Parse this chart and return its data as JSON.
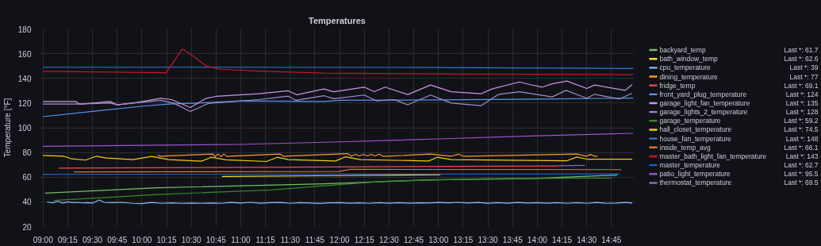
{
  "chart_data": {
    "type": "line",
    "title": "Temperatures",
    "ylabel": "Temperature [°F]",
    "xlim": [
      8.97,
      14.98
    ],
    "ylim": [
      20,
      180
    ],
    "yticks": [
      20,
      40,
      60,
      80,
      100,
      120,
      140,
      160,
      180
    ],
    "xticks": [
      {
        "value": 9,
        "label": "09:00"
      },
      {
        "value": 9.25,
        "label": "09:15"
      },
      {
        "value": 9.5,
        "label": "09:30"
      },
      {
        "value": 9.75,
        "label": "09:45"
      },
      {
        "value": 10,
        "label": "10:00"
      },
      {
        "value": 10.25,
        "label": "10:15"
      },
      {
        "value": 10.5,
        "label": "10:30"
      },
      {
        "value": 10.75,
        "label": "10:45"
      },
      {
        "value": 11,
        "label": "11:00"
      },
      {
        "value": 11.25,
        "label": "11:15"
      },
      {
        "value": 11.5,
        "label": "11:30"
      },
      {
        "value": 11.75,
        "label": "11:45"
      },
      {
        "value": 12,
        "label": "12:00"
      },
      {
        "value": 12.25,
        "label": "12:15"
      },
      {
        "value": 12.5,
        "label": "12:30"
      },
      {
        "value": 12.75,
        "label": "12:45"
      },
      {
        "value": 13,
        "label": "13:00"
      },
      {
        "value": 13.25,
        "label": "13:15"
      },
      {
        "value": 13.5,
        "label": "13:30"
      },
      {
        "value": 13.75,
        "label": "13:45"
      },
      {
        "value": 14,
        "label": "14:00"
      },
      {
        "value": 14.25,
        "label": "14:15"
      },
      {
        "value": 14.5,
        "label": "14:30"
      },
      {
        "value": 14.75,
        "label": "14:45"
      }
    ],
    "grid": true,
    "legend": "right",
    "annotations": [
      "Last *: 61.7",
      "Last *: 62.6",
      "Last *: 39",
      "Last *: 77",
      "Last *: 69.1",
      "Last *: 124",
      "Last *: 135",
      "Last *: 128",
      "Last *: 59.2",
      "Last *: 74.5",
      "Last *: 148",
      "Last *: 66.1",
      "Last *: 143",
      "Last *: 62.7",
      "Last *: 95.5",
      "Last *: 69.5"
    ],
    "series": [
      {
        "name": "backyard_temp",
        "color": "#73BF69",
        "x": [
          9.02,
          10.16,
          11.84,
          12.9,
          13.93,
          14.81
        ],
        "values": [
          47.1,
          51.4,
          54.6,
          57.8,
          58.8,
          61.7
        ]
      },
      {
        "name": "bath_window_temp",
        "color": "#FADE2A",
        "x": [
          10.81,
          12.0,
          13.02
        ],
        "values": [
          60.5,
          61.3,
          62.0
        ]
      },
      {
        "name": "cpu_temperature",
        "color": "#8AB8FF",
        "x": [
          9.04,
          9.1,
          9.15,
          9.2,
          9.25,
          9.3,
          9.35,
          9.4,
          9.45,
          9.5,
          9.57,
          9.62,
          9.7,
          9.8,
          9.9,
          10.0,
          10.1,
          10.2,
          10.3,
          10.4,
          10.5,
          10.6,
          10.7,
          10.8,
          10.9,
          11.0,
          11.1,
          11.2,
          11.3,
          11.4,
          11.5,
          11.6,
          11.7,
          11.8,
          11.9,
          12.0,
          12.1,
          12.2,
          12.3,
          12.4,
          12.5,
          12.6,
          12.7,
          12.8,
          12.9,
          13.0,
          13.1,
          13.2,
          13.3,
          13.4,
          13.5,
          13.6,
          13.7,
          13.8,
          13.9,
          14.0,
          14.1,
          14.2,
          14.3,
          14.4,
          14.5,
          14.6,
          14.7,
          14.8,
          14.9,
          14.96
        ],
        "values": [
          39.9,
          39.2,
          40.4,
          39.0,
          40.0,
          39.3,
          39.6,
          39.1,
          39.4,
          39.0,
          41.5,
          39.6,
          39.3,
          39.6,
          38.8,
          38.6,
          39.5,
          38.8,
          39.2,
          38.8,
          39.1,
          38.8,
          39.0,
          38.8,
          39.5,
          39.0,
          39.6,
          38.9,
          39.3,
          39.5,
          38.8,
          39.4,
          39.0,
          38.7,
          39.2,
          39.3,
          38.9,
          39.2,
          38.8,
          39.3,
          38.9,
          39.3,
          38.9,
          39.2,
          39.0,
          39.5,
          39.2,
          39.6,
          39.0,
          39.5,
          38.9,
          39.4,
          38.9,
          39.5,
          39.0,
          39.3,
          38.9,
          39.4,
          38.8,
          39.4,
          38.8,
          39.5,
          38.8,
          39.0,
          39.5,
          39.0
        ]
      },
      {
        "name": "dining_temperature",
        "color": "#FF9830",
        "x": [
          10.16,
          10.18,
          10.72,
          10.74,
          10.77,
          10.8,
          10.83,
          10.86,
          10.88,
          11.4,
          11.43,
          12.08,
          12.12,
          12.16,
          12.2,
          12.24,
          12.28,
          12.32,
          12.36,
          12.4,
          12.44,
          12.48,
          12.92,
          13.13,
          13.2,
          13.25,
          13.3,
          14.4,
          14.5,
          14.54,
          14.58,
          14.61
        ],
        "values": [
          78.0,
          77.0,
          78.7,
          76.6,
          78.7,
          76.6,
          78.7,
          76.8,
          77.0,
          78.7,
          77.0,
          79.1,
          77.0,
          78.5,
          77.2,
          78.5,
          77.2,
          78.5,
          77.2,
          78.6,
          77.0,
          77.0,
          78.7,
          77.0,
          78.6,
          77.0,
          77.0,
          78.7,
          77.0,
          78.4,
          77.0,
          77.0
        ]
      },
      {
        "name": "fridge_temp",
        "color": "#F2495C",
        "x": [
          9.16,
          12.0,
          14.21
        ],
        "values": [
          67.3,
          68.3,
          69.1
        ]
      },
      {
        "name": "front_yard_plug_temperature",
        "color": "#5794F2",
        "x": [
          9.0,
          9.5,
          10.01,
          10.27,
          10.57,
          11.0,
          11.84,
          12.0,
          13.0,
          14.0,
          14.97
        ],
        "values": [
          109.0,
          113.3,
          117.5,
          119.2,
          120.0,
          121.8,
          121.3,
          122.2,
          122.6,
          123.2,
          124.0
        ]
      },
      {
        "name": "garage_light_fan_temperature",
        "color": "#CA95E5",
        "x": [
          9.0,
          9.33,
          9.37,
          9.68,
          9.75,
          9.96,
          10.19,
          10.3,
          10.49,
          10.65,
          10.75,
          11.18,
          11.48,
          11.57,
          11.84,
          11.94,
          12.25,
          12.35,
          12.46,
          12.69,
          12.92,
          13.13,
          13.43,
          13.54,
          13.82,
          13.92,
          14.05,
          14.15,
          14.3,
          14.5,
          14.58,
          14.89,
          14.96
        ],
        "values": [
          121.3,
          121.3,
          119.0,
          121.3,
          118.6,
          120.7,
          123.9,
          122.8,
          116.4,
          123.9,
          125.4,
          127.5,
          129.9,
          126.7,
          131.4,
          129.2,
          132.9,
          129.2,
          132.9,
          126.9,
          134.6,
          129.2,
          127.5,
          131.4,
          137.1,
          135.0,
          132.9,
          135.6,
          137.8,
          131.8,
          134.6,
          130.3,
          135.0
        ]
      },
      {
        "name": "garage_lights_2_temperature",
        "color": "#A28CCF",
        "x": [
          9.0,
          9.33,
          9.68,
          9.75,
          10.19,
          10.32,
          10.49,
          10.67,
          11.18,
          11.48,
          11.56,
          11.84,
          11.94,
          12.25,
          12.37,
          12.55,
          12.69,
          12.92,
          13.13,
          13.43,
          13.61,
          13.82,
          14.15,
          14.29,
          14.5,
          14.58,
          14.83,
          14.96
        ],
        "values": [
          119.2,
          119.2,
          120.0,
          118.6,
          122.2,
          120.0,
          113.2,
          119.6,
          122.8,
          125.6,
          122.2,
          126.0,
          123.5,
          126.5,
          121.8,
          122.8,
          118.6,
          126.5,
          120.0,
          117.9,
          127.1,
          129.2,
          125.0,
          130.3,
          123.9,
          127.1,
          123.3,
          128.0
        ]
      },
      {
        "name": "garage_temperature",
        "color": "#37872D",
        "x": [
          9.11,
          10.16,
          11.31,
          11.84,
          12.46,
          13.48,
          14.75
        ],
        "values": [
          41.1,
          46.0,
          49.7,
          53.0,
          56.7,
          58.8,
          59.2
        ]
      },
      {
        "name": "hall_closet_temperature",
        "color": "#F2CC0C",
        "x": [
          9.0,
          9.21,
          9.29,
          9.43,
          9.54,
          9.64,
          9.91,
          10.1,
          10.27,
          10.6,
          10.7,
          10.85,
          11.26,
          11.37,
          11.48,
          11.96,
          12.06,
          12.21,
          12.9,
          12.99,
          13.13,
          14.3,
          14.4,
          14.5,
          14.96
        ],
        "values": [
          77.6,
          77.0,
          74.8,
          73.8,
          77.0,
          75.5,
          74.2,
          76.8,
          74.2,
          72.9,
          76.1,
          74.0,
          72.7,
          76.1,
          74.2,
          73.1,
          76.5,
          74.2,
          73.1,
          76.1,
          74.2,
          73.3,
          76.3,
          74.6,
          74.5
        ]
      },
      {
        "name": "house_fan_temperature",
        "color": "#3274D9",
        "x": [
          9.0,
          11.0,
          13.0,
          14.97
        ],
        "values": [
          149.0,
          149.0,
          148.8,
          148.0
        ]
      },
      {
        "name": "inside_temp_avg",
        "color": "#E0752D",
        "x": [
          9.31,
          11.99,
          12.11,
          14.85
        ],
        "values": [
          64.2,
          64.6,
          66.3,
          66.1
        ]
      },
      {
        "name": "master_bath_light_fan_temperature",
        "color": "#C4162A",
        "x": [
          9.0,
          10.245,
          10.41,
          10.52,
          10.65,
          10.8,
          11.18,
          11.84,
          13.23,
          14.97
        ],
        "values": [
          145.7,
          144.6,
          163.8,
          158.0,
          150.0,
          147.4,
          145.9,
          144.2,
          143.5,
          143.0
        ]
      },
      {
        "name": "master_temperature",
        "color": "#1F60C4",
        "x": [
          9.0,
          12.0,
          14.83
        ],
        "values": [
          62.3,
          62.5,
          62.7
        ]
      },
      {
        "name": "patio_light_temperature",
        "color": "#A352CC",
        "x": [
          9.0,
          11.0,
          12.0,
          13.0,
          14.0,
          14.97
        ],
        "values": [
          85.0,
          86.5,
          88.6,
          91.0,
          93.5,
          95.5
        ]
      },
      {
        "name": "thermostat_temperature",
        "color": "#806EB7",
        "x": [
          14.21,
          14.35,
          14.48
        ],
        "values": [
          69.3,
          69.4,
          69.5
        ]
      }
    ]
  }
}
